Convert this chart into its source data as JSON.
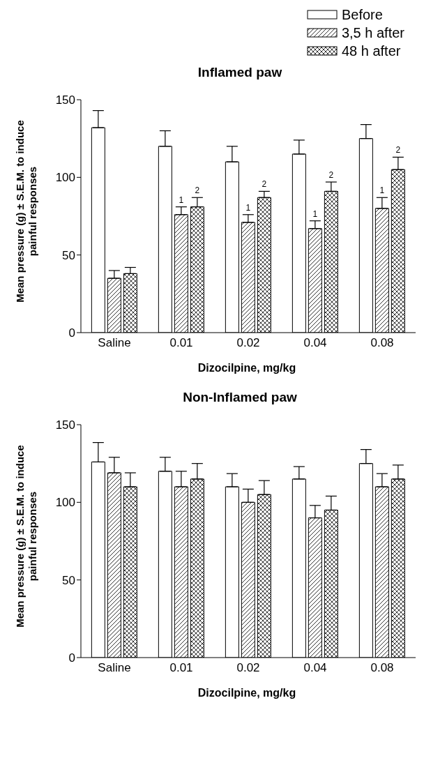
{
  "chart_data": [
    {
      "type": "bar",
      "title": "Inflamed paw",
      "xlabel": "Dizocilpine, mg/kg",
      "ylabel": "Mean pressure (g) ± S.E.M. to induce painful responses",
      "categories": [
        "Saline",
        "0.01",
        "0.02",
        "0.04",
        "0.08"
      ],
      "series": [
        {
          "name": "Before",
          "color": "#ffffff",
          "values": [
            132,
            120,
            110,
            115,
            125
          ],
          "errors": [
            [
              132,
              143
            ],
            [
              120,
              130
            ],
            [
              110,
              120
            ],
            [
              115,
              124
            ],
            [
              125,
              134
            ]
          ]
        },
        {
          "name": "3,5 h after",
          "color": "#000000",
          "values": [
            35,
            76,
            71,
            67,
            80
          ],
          "errors": [
            [
              35,
              40
            ],
            [
              76,
              81
            ],
            [
              71,
              76
            ],
            [
              67,
              72
            ],
            [
              80,
              87
            ]
          ]
        },
        {
          "name": "48 h after",
          "color": "#000000",
          "values": [
            38,
            81,
            87,
            91,
            105
          ],
          "errors": [
            [
              38,
              42
            ],
            [
              81,
              87
            ],
            [
              87,
              91
            ],
            [
              91,
              97
            ],
            [
              105,
              113
            ]
          ]
        }
      ],
      "ylim": [
        0,
        150
      ],
      "yticks": [
        0,
        50,
        100,
        150
      ],
      "grid": false,
      "legend": "top right",
      "annotations": [
        {
          "text": "1",
          "x": "0.01",
          "y": 81
        },
        {
          "text": "2",
          "y": 87
        },
        {
          "text": "1",
          "x": "0.02",
          "y": 76
        },
        {
          "text": "2",
          "y": 91
        },
        {
          "text": "1",
          "x": "0.04",
          "y": 72
        },
        {
          "text": "2",
          "y": 97
        },
        {
          "text": "1",
          "x": "0.08",
          "y": 87
        },
        {
          "text": "2",
          "y": 113
        }
      ]
    },
    {
      "type": "bar",
      "title": "Non-Inflamed paw",
      "xlabel": "Dizocilpine, mg/kg",
      "ylabel": "Mean pressure (g) ± S.E.M. to induce painful responses",
      "categories": [
        "Saline",
        "0.01",
        "0.02",
        "0.04",
        "0.08"
      ],
      "series": [
        {
          "color": "#ffffff",
          "values": [
            126,
            120,
            110,
            115,
            125
          ],
          "errors": [
            [
              126,
              138.5
            ],
            [
              120,
              129
            ],
            [
              110,
              118.5
            ],
            [
              115,
              123
            ],
            [
              125,
              134
            ]
          ]
        },
        {
          "color": "#000000",
          "values": [
            119,
            110,
            100,
            90,
            110
          ],
          "errors": [
            [
              119,
              129
            ],
            [
              110,
              120
            ],
            [
              100,
              108.5
            ],
            [
              90,
              98
            ],
            [
              110,
              118.5
            ]
          ]
        },
        {
          "color": "#000000",
          "values": [
            110,
            115,
            105,
            95,
            115
          ],
          "errors": [
            [
              110,
              119
            ],
            [
              115,
              125
            ],
            [
              105,
              114
            ],
            [
              95,
              104
            ],
            [
              115,
              124
            ]
          ]
        }
      ],
      "ylim": [
        0,
        150
      ],
      "yticks": [
        0,
        50,
        100,
        150
      ],
      "grid": false,
      "legend": false
    }
  ]
}
